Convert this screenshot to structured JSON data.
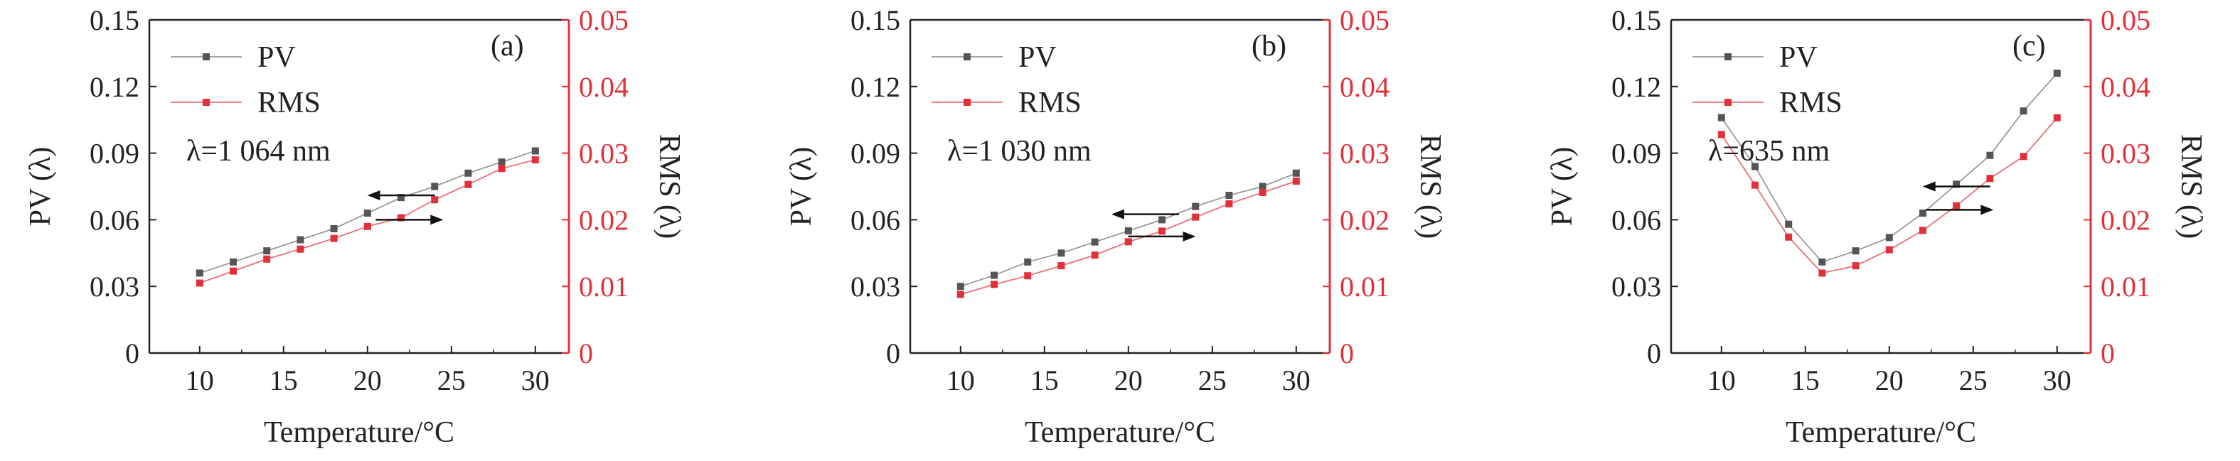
{
  "figure": {
    "colors": {
      "pv": "#555555",
      "rms": "#e0303a",
      "axis_black": "#222222",
      "axis_red": "#e0303a"
    }
  },
  "chart_data": [
    {
      "type": "line",
      "panel_label": "(a)",
      "annotation": "λ=1 064 nm",
      "xlabel": "Temperature/°C",
      "ylabel": "PV (λ)",
      "y2label": "RMS (λ)",
      "x": [
        10,
        12,
        14,
        16,
        18,
        20,
        22,
        24,
        26,
        28,
        30
      ],
      "xlim": [
        7,
        32
      ],
      "xticks": [
        "10",
        "15",
        "20",
        "25",
        "30"
      ],
      "ylim": [
        0,
        0.15
      ],
      "yticks": [
        "0",
        "0.03",
        "0.06",
        "0.09",
        "0.12",
        "0.15"
      ],
      "y2lim": [
        0,
        0.05
      ],
      "y2ticks": [
        "0",
        "0.01",
        "0.02",
        "0.03",
        "0.04",
        "0.05"
      ],
      "legend_position": "top-left",
      "series": [
        {
          "name": "PV",
          "axis": "left",
          "values": [
            0.036,
            0.041,
            0.046,
            0.051,
            0.056,
            0.063,
            0.07,
            0.075,
            0.081,
            0.086,
            0.091
          ]
        },
        {
          "name": "RMS",
          "axis": "right",
          "values": [
            0.0105,
            0.0123,
            0.0141,
            0.0156,
            0.0172,
            0.019,
            0.0203,
            0.023,
            0.0253,
            0.0277,
            0.029
          ]
        }
      ],
      "arrows": [
        {
          "direction": "left",
          "at": [
            22.0,
            0.071
          ],
          "points_to": "PV"
        },
        {
          "direction": "right",
          "at": [
            22.5,
            0.06
          ],
          "points_to": "RMS"
        }
      ]
    },
    {
      "type": "line",
      "panel_label": "(b)",
      "annotation": "λ=1 030 nm",
      "xlabel": "Temperature/°C",
      "ylabel": "PV (λ)",
      "y2label": "RMS (λ)",
      "x": [
        10,
        12,
        14,
        16,
        18,
        20,
        22,
        24,
        26,
        28,
        30
      ],
      "xlim": [
        7,
        32
      ],
      "xticks": [
        "10",
        "15",
        "20",
        "25",
        "30"
      ],
      "ylim": [
        0,
        0.15
      ],
      "yticks": [
        "0",
        "0.03",
        "0.06",
        "0.09",
        "0.12",
        "0.15"
      ],
      "y2lim": [
        0,
        0.05
      ],
      "y2ticks": [
        "0",
        "0.01",
        "0.02",
        "0.03",
        "0.04",
        "0.05"
      ],
      "legend_position": "top-left",
      "series": [
        {
          "name": "PV",
          "axis": "left",
          "values": [
            0.03,
            0.035,
            0.041,
            0.045,
            0.05,
            0.055,
            0.06,
            0.066,
            0.071,
            0.075,
            0.081
          ]
        },
        {
          "name": "RMS",
          "axis": "right",
          "values": [
            0.0088,
            0.0103,
            0.0116,
            0.0131,
            0.0147,
            0.0167,
            0.0183,
            0.0204,
            0.0224,
            0.0241,
            0.0258
          ]
        }
      ],
      "arrows": [
        {
          "direction": "left",
          "at": [
            21.0,
            0.0625
          ],
          "points_to": "PV"
        },
        {
          "direction": "right",
          "at": [
            22.0,
            0.0525
          ],
          "points_to": "RMS"
        }
      ]
    },
    {
      "type": "line",
      "panel_label": "(c)",
      "annotation": "λ=635 nm",
      "xlabel": "Temperature/°C",
      "ylabel": "PV (λ)",
      "y2label": "RMS (λ)",
      "x": [
        10,
        12,
        14,
        16,
        18,
        20,
        22,
        24,
        26,
        28,
        30
      ],
      "xlim": [
        7,
        32
      ],
      "xticks": [
        "10",
        "15",
        "20",
        "25",
        "30"
      ],
      "ylim": [
        0,
        0.15
      ],
      "yticks": [
        "0",
        "0.03",
        "0.06",
        "0.09",
        "0.12",
        "0.15"
      ],
      "y2lim": [
        0,
        0.05
      ],
      "y2ticks": [
        "0",
        "0.01",
        "0.02",
        "0.03",
        "0.04",
        "0.05"
      ],
      "legend_position": "top-left",
      "series": [
        {
          "name": "PV",
          "axis": "left",
          "values": [
            0.106,
            0.084,
            0.058,
            0.041,
            0.046,
            0.052,
            0.063,
            0.076,
            0.089,
            0.109,
            0.126
          ]
        },
        {
          "name": "RMS",
          "axis": "right",
          "values": [
            0.0328,
            0.0252,
            0.0174,
            0.012,
            0.0131,
            0.0155,
            0.0184,
            0.0221,
            0.0262,
            0.0295,
            0.0353
          ]
        }
      ],
      "arrows": [
        {
          "direction": "left",
          "at": [
            24.0,
            0.075
          ],
          "points_to": "PV"
        },
        {
          "direction": "right",
          "at": [
            24.2,
            0.0645
          ],
          "points_to": "RMS"
        }
      ]
    }
  ]
}
